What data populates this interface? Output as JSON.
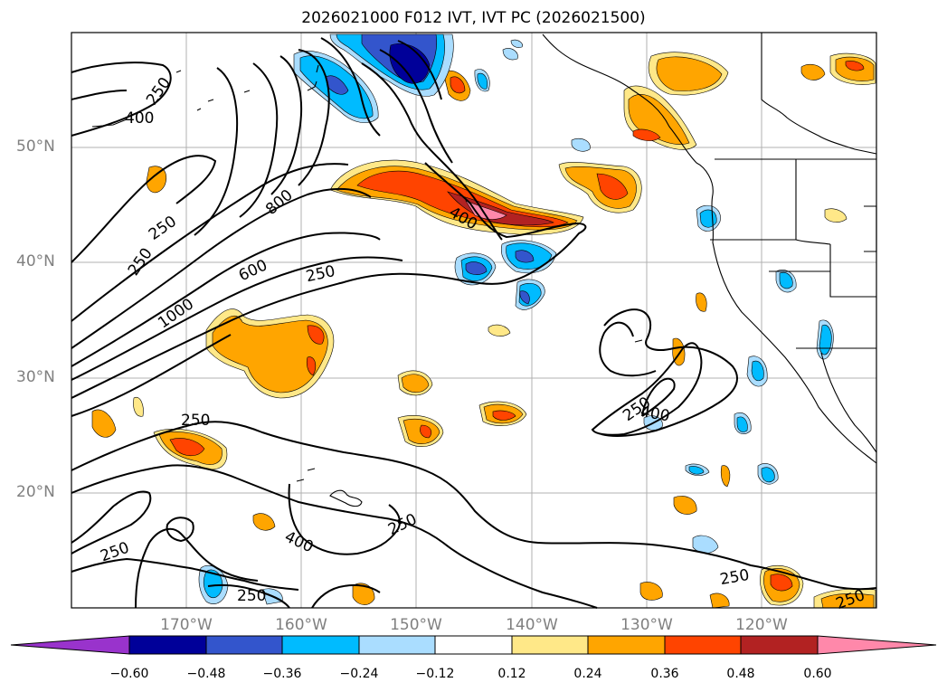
{
  "title": "2026021000 F012 IVT, IVT PC (2026021500)",
  "lat_labels": [
    "50°N",
    "40°N",
    "30°N",
    "20°N"
  ],
  "lon_labels": [
    "170°W",
    "160°W",
    "150°W",
    "140°W",
    "130°W",
    "120°W"
  ],
  "colorbar": {
    "ticks": [
      "−0.60",
      "−0.48",
      "−0.36",
      "−0.24",
      "−0.12",
      "0.12",
      "0.24",
      "0.36",
      "0.48",
      "0.60"
    ],
    "colors": [
      "#9933cc",
      "#000099",
      "#3355cc",
      "#00bbff",
      "#aaddff",
      "#ffffff",
      "#ffe888",
      "#ffa500",
      "#ff4400",
      "#b22222",
      "#ff88aa"
    ]
  },
  "contour_labels": {
    "c1": "250",
    "c2": "400",
    "c3": "800",
    "c4": "250",
    "c5": "250",
    "c6": "600",
    "c7": "1000",
    "c8": "250",
    "c9": "400",
    "c10": "250",
    "c11": "400",
    "c12": "250",
    "c13": "250",
    "c14": "400",
    "c15": "250",
    "c16": "250",
    "c17": "250"
  },
  "fill_colors": {
    "neg_light": "#aaddff",
    "neg_mid": "#00bbff",
    "neg_strong": "#3355cc",
    "neg_max": "#000099",
    "pos_light": "#ffe888",
    "pos_mid": "#ffa500",
    "pos_strong": "#ff4400",
    "pos_max": "#b22222",
    "pos_extreme": "#ff88aa"
  }
}
